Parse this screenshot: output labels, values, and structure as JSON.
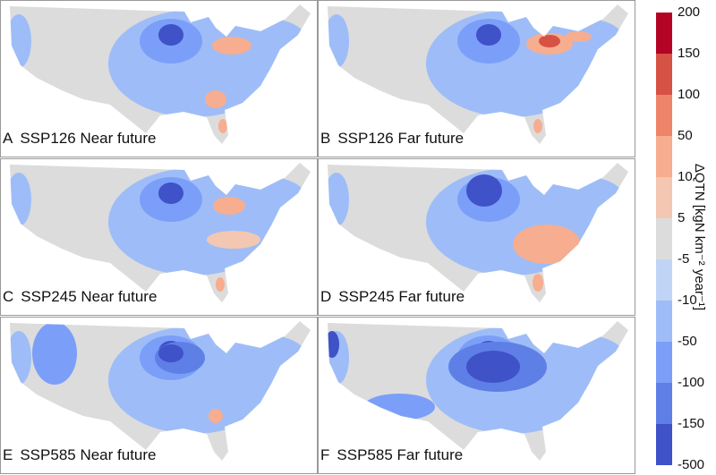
{
  "panels": [
    {
      "letter": "A",
      "title": "SSP126 Near future"
    },
    {
      "letter": "B",
      "title": "SSP126 Far future"
    },
    {
      "letter": "C",
      "title": "SSP245 Near future"
    },
    {
      "letter": "D",
      "title": "SSP245 Far future"
    },
    {
      "letter": "E",
      "title": "SSP585 Near future"
    },
    {
      "letter": "F",
      "title": "SSP585 Far future"
    }
  ],
  "colorbar": {
    "ticks": [
      "200",
      "150",
      "100",
      "50",
      "10",
      "5",
      "-5",
      "-10",
      "-50",
      "-100",
      "-150",
      "-500"
    ],
    "colors": [
      "#b40426",
      "#d65244",
      "#ee8468",
      "#f7ad8f",
      "#f3c7b1",
      "#dcdcdc",
      "#c0d4f5",
      "#9ebdf8",
      "#7b9ff9",
      "#5e7fe6",
      "#3f52c8"
    ],
    "label": "ΔQTN [kgN km⁻² year⁻¹]"
  }
}
